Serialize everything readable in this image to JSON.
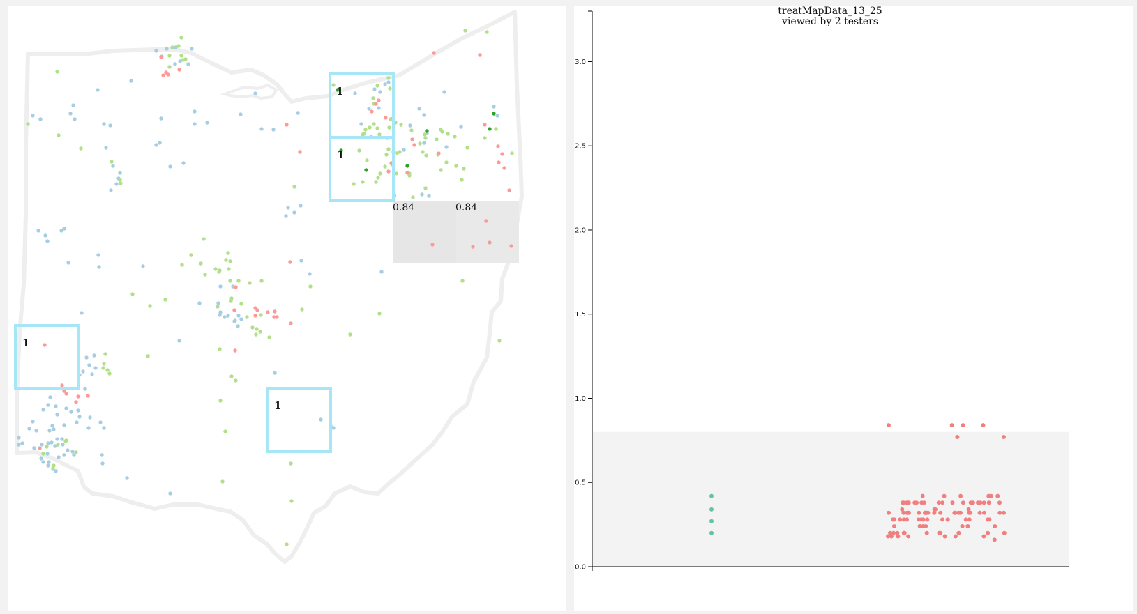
{
  "colors": {
    "blue": "#a6cee3",
    "lightgreen": "#b2df8a",
    "darkgreen": "#33a02c",
    "red": "#fb9a99",
    "box": "#a6e6f7",
    "teal": "#66c2a5",
    "salmon": "#f08080",
    "outline": "#eeeeee",
    "highlight_cell": "#e8e8e8",
    "chart_band": "#f3f3f3"
  },
  "map": {
    "selection_boxes": [
      {
        "label": "1"
      },
      {
        "label": "1"
      },
      {
        "label": "1"
      },
      {
        "label": "1"
      }
    ],
    "grid_cells": [
      {
        "label": "0.84"
      },
      {
        "label": "0.84"
      }
    ]
  },
  "chart_data": {
    "type": "scatter",
    "title": "treatMapData_13_25",
    "subtitle": "viewed by 2 testers",
    "xlabel": "",
    "ylabel": "",
    "ylim": [
      0,
      3.3
    ],
    "yticks": [
      "0.0",
      "0.5",
      "1.0",
      "1.5",
      "2.0",
      "2.5",
      "3.0"
    ],
    "grid": false,
    "shaded_band": [
      0,
      0.8
    ],
    "series": [
      {
        "color": "teal",
        "points": [
          [
            0,
            0.42
          ],
          [
            0,
            0.34
          ],
          [
            0,
            0.27
          ],
          [
            0,
            0.2
          ]
        ]
      },
      {
        "color": "salmon",
        "points": [
          [
            1,
            0.84
          ],
          [
            1,
            0.84
          ],
          [
            1,
            0.84
          ],
          [
            1,
            0.84
          ],
          [
            1,
            0.77
          ],
          [
            1,
            0.77
          ],
          [
            1,
            0.42
          ],
          [
            1,
            0.42
          ],
          [
            1,
            0.42
          ],
          [
            1,
            0.42
          ],
          [
            1,
            0.42
          ],
          [
            1,
            0.42
          ],
          [
            1,
            0.38
          ],
          [
            1,
            0.38
          ],
          [
            1,
            0.38
          ],
          [
            1,
            0.38
          ],
          [
            1,
            0.38
          ],
          [
            1,
            0.38
          ],
          [
            1,
            0.38
          ],
          [
            1,
            0.38
          ],
          [
            1,
            0.38
          ],
          [
            1,
            0.38
          ],
          [
            1,
            0.38
          ],
          [
            1,
            0.38
          ],
          [
            1,
            0.38
          ],
          [
            1,
            0.38
          ],
          [
            1,
            0.38
          ],
          [
            1,
            0.38
          ],
          [
            1,
            0.38
          ],
          [
            1,
            0.38
          ],
          [
            1,
            0.38
          ],
          [
            1,
            0.38
          ],
          [
            1,
            0.34
          ],
          [
            1,
            0.34
          ],
          [
            1,
            0.34
          ],
          [
            1,
            0.34
          ],
          [
            1,
            0.32
          ],
          [
            1,
            0.32
          ],
          [
            1,
            0.32
          ],
          [
            1,
            0.32
          ],
          [
            1,
            0.32
          ],
          [
            1,
            0.32
          ],
          [
            1,
            0.32
          ],
          [
            1,
            0.32
          ],
          [
            1,
            0.32
          ],
          [
            1,
            0.32
          ],
          [
            1,
            0.32
          ],
          [
            1,
            0.32
          ],
          [
            1,
            0.32
          ],
          [
            1,
            0.32
          ],
          [
            1,
            0.32
          ],
          [
            1,
            0.32
          ],
          [
            1,
            0.32
          ],
          [
            1,
            0.32
          ],
          [
            1,
            0.32
          ],
          [
            1,
            0.32
          ],
          [
            1,
            0.32
          ],
          [
            1,
            0.32
          ],
          [
            1,
            0.28
          ],
          [
            1,
            0.28
          ],
          [
            1,
            0.28
          ],
          [
            1,
            0.28
          ],
          [
            1,
            0.28
          ],
          [
            1,
            0.28
          ],
          [
            1,
            0.28
          ],
          [
            1,
            0.28
          ],
          [
            1,
            0.28
          ],
          [
            1,
            0.28
          ],
          [
            1,
            0.28
          ],
          [
            1,
            0.28
          ],
          [
            1,
            0.28
          ],
          [
            1,
            0.28
          ],
          [
            1,
            0.28
          ],
          [
            1,
            0.28
          ],
          [
            1,
            0.24
          ],
          [
            1,
            0.24
          ],
          [
            1,
            0.24
          ],
          [
            1,
            0.24
          ],
          [
            1,
            0.24
          ],
          [
            1,
            0.24
          ],
          [
            1,
            0.24
          ],
          [
            1,
            0.24
          ],
          [
            1,
            0.2
          ],
          [
            1,
            0.2
          ],
          [
            1,
            0.2
          ],
          [
            1,
            0.2
          ],
          [
            1,
            0.2
          ],
          [
            1,
            0.2
          ],
          [
            1,
            0.2
          ],
          [
            1,
            0.2
          ],
          [
            1,
            0.2
          ],
          [
            1,
            0.2
          ],
          [
            1,
            0.2
          ],
          [
            1,
            0.2
          ],
          [
            1,
            0.18
          ],
          [
            1,
            0.18
          ],
          [
            1,
            0.18
          ],
          [
            1,
            0.18
          ],
          [
            1,
            0.18
          ],
          [
            1,
            0.18
          ],
          [
            1,
            0.18
          ],
          [
            1,
            0.16
          ]
        ]
      }
    ]
  }
}
